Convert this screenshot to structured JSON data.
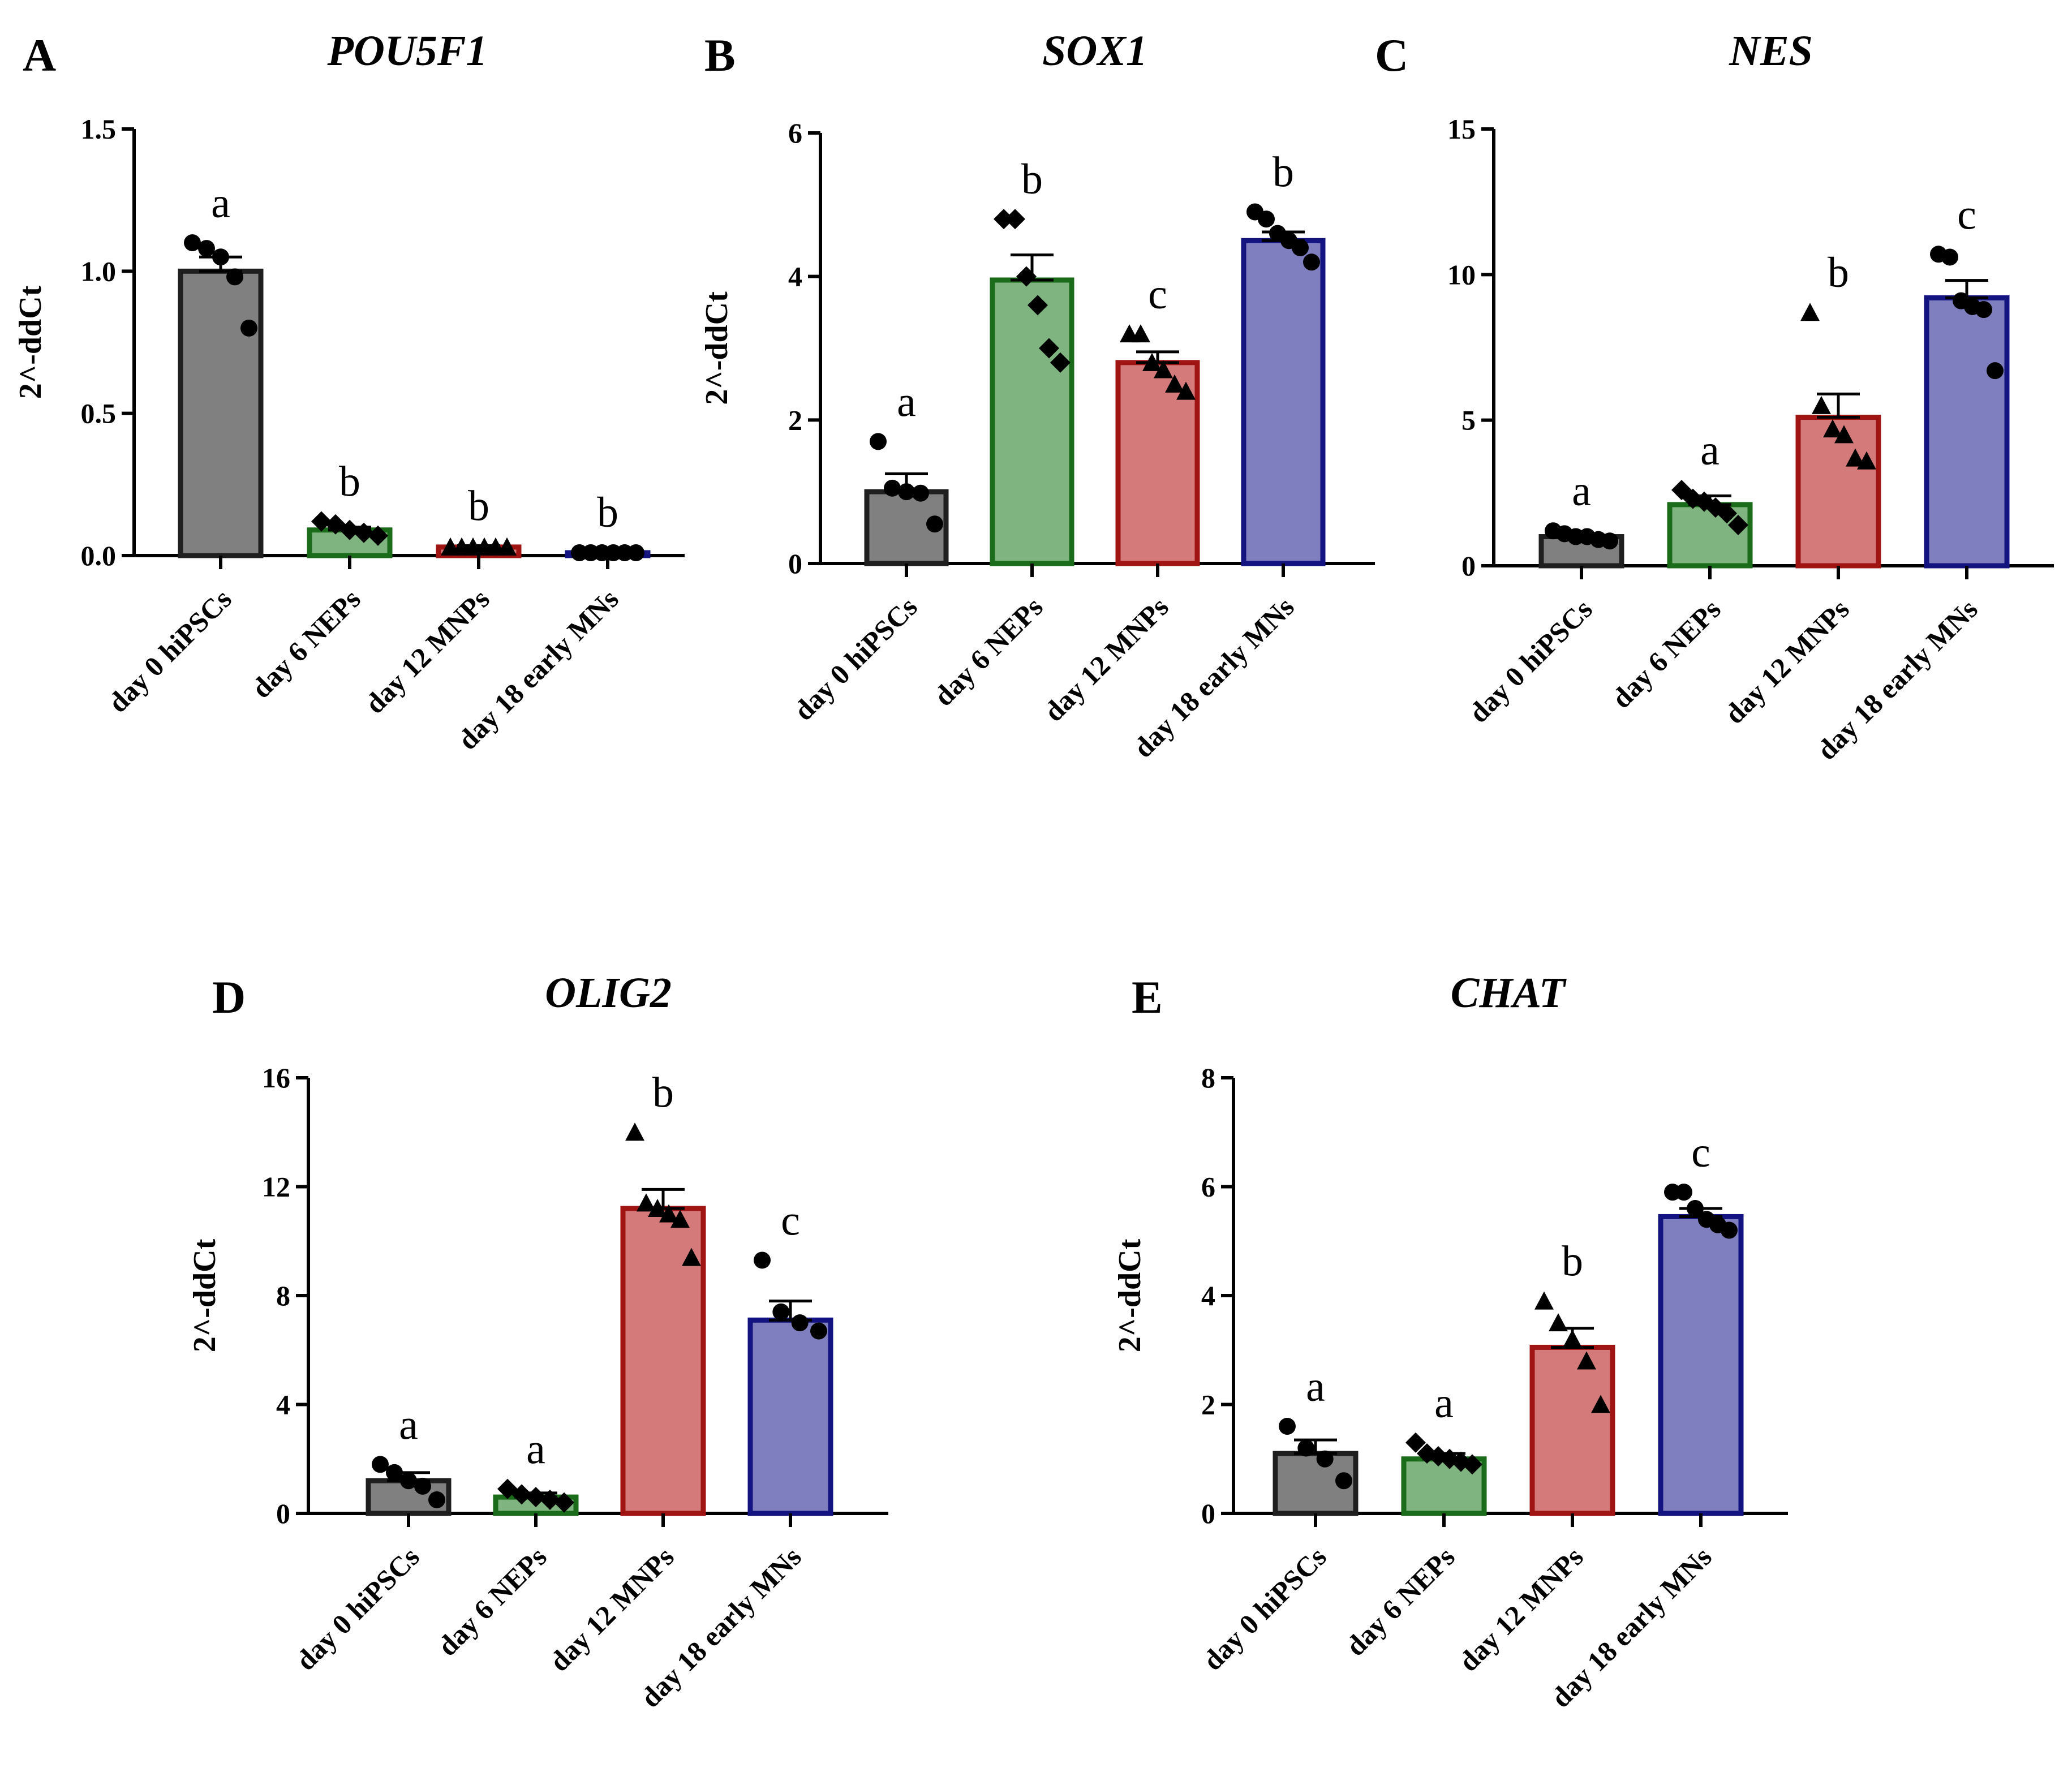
{
  "categories": [
    "day 0 hiPSCs",
    "day 6 NEPs",
    "day 12 MNPs",
    "day 18 early MNs"
  ],
  "colors": {
    "fills": [
      "#808080",
      "#7fb37f",
      "#d47a7a",
      "#7f7fbf"
    ],
    "strokes": [
      "#1f1f1f",
      "#1a6b1a",
      "#a01414",
      "#141480"
    ],
    "axis": "#000000"
  },
  "chart_data": [
    {
      "type": "bar",
      "panel": "A",
      "title": "POU5F1",
      "ylabel": "2^-ddCt",
      "ylim": [
        0,
        1.5
      ],
      "ticks": [
        0,
        0.5,
        1.0,
        1.5
      ],
      "tick_labels": [
        "0.0",
        "0.5",
        "1.0",
        "1.5"
      ],
      "categories": [
        "day 0 hiPSCs",
        "day 6 NEPs",
        "day 12 MNPs",
        "day 18 early MNs"
      ],
      "values": [
        1.0,
        0.09,
        0.03,
        0.01
      ],
      "errors": [
        0.05,
        0.01,
        0.005,
        0.002
      ],
      "letters": [
        "a",
        "b",
        "b",
        "b"
      ],
      "points": [
        [
          1.1,
          1.08,
          1.05,
          0.98,
          0.8
        ],
        [
          0.12,
          0.11,
          0.09,
          0.08,
          0.07
        ],
        [
          0.03,
          0.03,
          0.03,
          0.03,
          0.03,
          0.03
        ],
        [
          0.01,
          0.01,
          0.01,
          0.01,
          0.01,
          0.01
        ]
      ],
      "markers": [
        "circle",
        "diamond",
        "triangle",
        "circle"
      ]
    },
    {
      "type": "bar",
      "panel": "B",
      "title": "SOX1",
      "ylabel": "2^-ddCt",
      "ylim": [
        0,
        6
      ],
      "ticks": [
        0,
        2,
        4,
        6
      ],
      "tick_labels": [
        "0",
        "2",
        "4",
        "6"
      ],
      "categories": [
        "day 0 hiPSCs",
        "day 6 NEPs",
        "day 12 MNPs",
        "day 18 early MNs"
      ],
      "values": [
        1.0,
        3.95,
        2.8,
        4.5
      ],
      "errors": [
        0.25,
        0.35,
        0.15,
        0.12
      ],
      "letters": [
        "a",
        "b",
        "c",
        "b"
      ],
      "points": [
        [
          1.7,
          1.05,
          1.0,
          0.98,
          0.55
        ],
        [
          4.8,
          4.8,
          4.0,
          3.6,
          3.0,
          2.8
        ],
        [
          3.2,
          3.2,
          2.8,
          2.7,
          2.5,
          2.4
        ],
        [
          4.9,
          4.8,
          4.6,
          4.5,
          4.4,
          4.2
        ]
      ],
      "markers": [
        "circle",
        "diamond",
        "triangle",
        "circle"
      ]
    },
    {
      "type": "bar",
      "panel": "C",
      "title": "NES",
      "ylabel": "",
      "ylim": [
        0,
        15
      ],
      "ticks": [
        0,
        5,
        10,
        15
      ],
      "tick_labels": [
        "0",
        "5",
        "10",
        "15"
      ],
      "categories": [
        "day 0 hiPSCs",
        "day 6 NEPs",
        "day 12 MNPs",
        "day 18 early MNs"
      ],
      "values": [
        1.0,
        2.1,
        5.1,
        9.2
      ],
      "errors": [
        0.1,
        0.3,
        0.8,
        0.6
      ],
      "letters": [
        "a",
        "a",
        "b",
        "c"
      ],
      "points": [
        [
          1.2,
          1.1,
          1.0,
          1.0,
          0.9,
          0.85
        ],
        [
          2.6,
          2.3,
          2.2,
          2.0,
          1.8,
          1.4
        ],
        [
          8.7,
          5.5,
          4.7,
          4.5,
          3.7,
          3.6
        ],
        [
          10.7,
          10.6,
          9.1,
          8.9,
          8.8,
          6.7
        ]
      ],
      "markers": [
        "circle",
        "diamond",
        "triangle",
        "circle"
      ]
    },
    {
      "type": "bar",
      "panel": "D",
      "title": "OLIG2",
      "ylabel": "2^-ddCt",
      "ylim": [
        0,
        16
      ],
      "ticks": [
        0,
        4,
        8,
        12,
        16
      ],
      "tick_labels": [
        "0",
        "4",
        "8",
        "12",
        "16"
      ],
      "categories": [
        "day 0 hiPSCs",
        "day 6 NEPs",
        "day 12 MNPs",
        "day 18 early MNs"
      ],
      "values": [
        1.2,
        0.6,
        11.2,
        7.1
      ],
      "errors": [
        0.3,
        0.15,
        0.7,
        0.7
      ],
      "letters": [
        "a",
        "a",
        "b",
        "c"
      ],
      "points": [
        [
          1.8,
          1.5,
          1.2,
          1.0,
          0.5
        ],
        [
          0.9,
          0.7,
          0.6,
          0.5,
          0.4
        ],
        [
          14.0,
          11.4,
          11.2,
          11.0,
          10.8,
          9.4
        ],
        [
          9.3,
          7.4,
          7.0,
          6.7
        ]
      ],
      "markers": [
        "circle",
        "diamond",
        "triangle",
        "circle"
      ]
    },
    {
      "type": "bar",
      "panel": "E",
      "title": "CHAT",
      "ylabel": "2^-ddCt",
      "ylim": [
        0,
        8
      ],
      "ticks": [
        0,
        2,
        4,
        6,
        8
      ],
      "tick_labels": [
        "0",
        "2",
        "4",
        "6",
        "8"
      ],
      "categories": [
        "day 0 hiPSCs",
        "day 6 NEPs",
        "day 12 MNPs",
        "day 18 early MNs"
      ],
      "values": [
        1.1,
        1.0,
        3.05,
        5.45
      ],
      "errors": [
        0.25,
        0.1,
        0.35,
        0.15
      ],
      "letters": [
        "a",
        "a",
        "b",
        "c"
      ],
      "points": [
        [
          1.6,
          1.2,
          1.0,
          0.6
        ],
        [
          1.3,
          1.1,
          1.05,
          1.0,
          0.95,
          0.9
        ],
        [
          3.9,
          3.5,
          3.2,
          2.8,
          2.0
        ],
        [
          5.9,
          5.9,
          5.6,
          5.4,
          5.3,
          5.2
        ]
      ],
      "markers": [
        "circle",
        "diamond",
        "triangle",
        "circle"
      ]
    }
  ]
}
